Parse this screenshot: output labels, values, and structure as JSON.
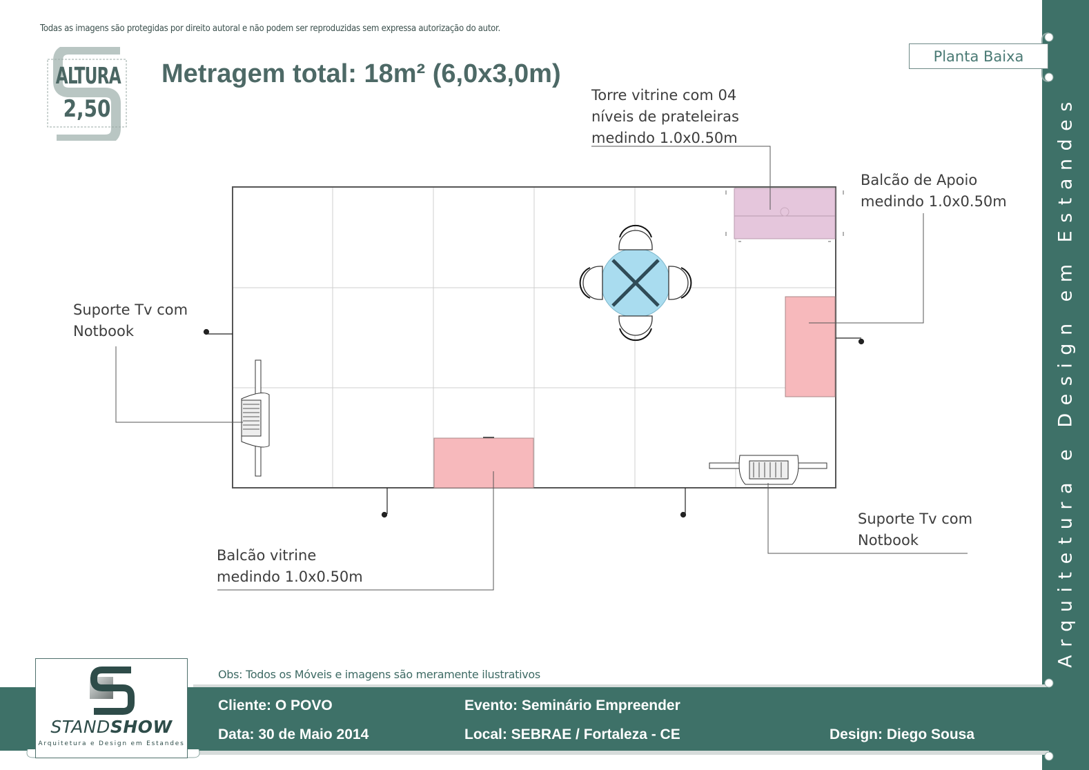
{
  "header": {
    "copyright": "Todas as imagens são protegidas por direito autoral e não podem ser reproduzidas sem expressa autorização do autor.",
    "height_label": "ALTURA",
    "height_value": "2,50",
    "title": "Metragem total: 18m² (6,0x3,0m)",
    "view_tab": "Planta Baixa"
  },
  "sidebar": {
    "tagline": "Arquitetura e Design em Estandes"
  },
  "annotations": {
    "tower": "Torre vitrine com 04\nníveis de prateleiras\nmedindo 1.0x0.50m",
    "support_counter": "Balcão de Apoio\nmedindo 1.0x0.50m",
    "tv_left": "Suporte Tv com\nNotbook",
    "tv_right": "Suporte Tv com\nNotbook",
    "display_counter": "Balcão vitrine\nmedindo 1.0x0.50m"
  },
  "colors": {
    "brand_green": "#3e7168",
    "counter_pink": "#f7b9bc",
    "tower_purple": "#e5c6dc",
    "table_blue": "#a9dcef"
  },
  "footer": {
    "note": "Obs: Todos os Móveis e imagens são meramente ilustrativos",
    "client": "Cliente: O POVO",
    "date": "Data: 30 de  Maio 2014",
    "event": "Evento: Seminário Empreender",
    "location": "Local: SEBRAE / Fortaleza - CE",
    "designer": "Design: Diego Sousa",
    "logo_name_part1": "STAND",
    "logo_name_part2": "SHOW",
    "logo_tagline": "Arquitetura e Design em Estandes"
  }
}
